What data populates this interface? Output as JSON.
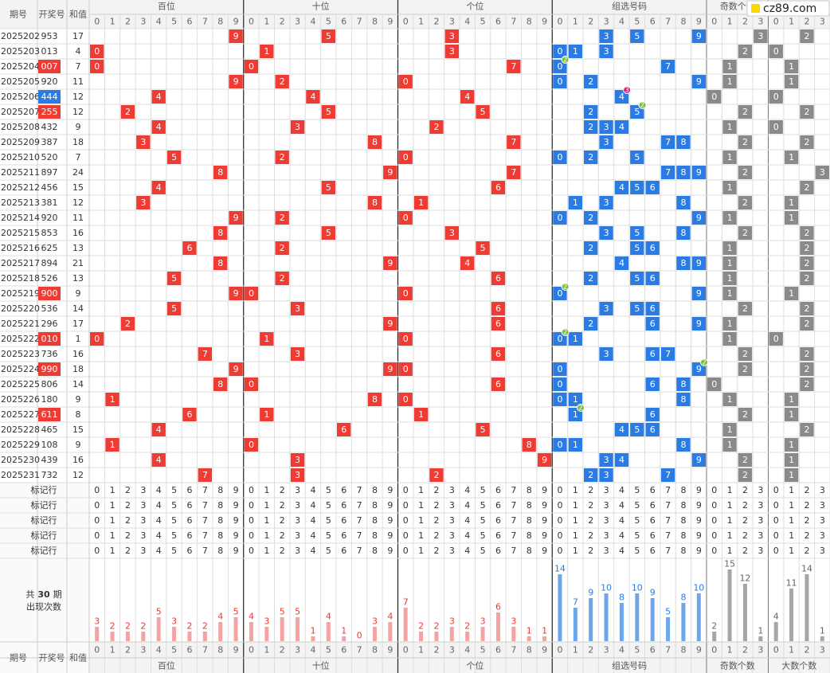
{
  "logo": "cz89.com",
  "headers": {
    "period": "期号",
    "number": "开奖号",
    "sum": "和值",
    "hundreds": "百位",
    "tens": "十位",
    "units": "个位",
    "combo": "组选号码",
    "odd": "奇数个数",
    "big": "大数个数"
  },
  "digit_labels": [
    0,
    1,
    2,
    3,
    4,
    5,
    6,
    7,
    8,
    9
  ],
  "count_labels": [
    0,
    1,
    2,
    3
  ],
  "rows": [
    {
      "period": "2025202",
      "number": "953",
      "sum": 17,
      "digits": [
        9,
        5,
        3
      ],
      "odd": 3,
      "big": 2
    },
    {
      "period": "2025203",
      "number": "013",
      "sum": 4,
      "digits": [
        0,
        1,
        3
      ],
      "odd": 2,
      "big": 0
    },
    {
      "period": "2025204",
      "number": "007",
      "sum": 7,
      "digits": [
        0,
        0,
        7
      ],
      "odd": 1,
      "big": 1,
      "repeat": 2
    },
    {
      "period": "2025205",
      "number": "920",
      "sum": 11,
      "digits": [
        9,
        2,
        0
      ],
      "odd": 1,
      "big": 1
    },
    {
      "period": "2025206",
      "number": "444",
      "sum": 12,
      "digits": [
        4,
        4,
        4
      ],
      "odd": 0,
      "big": 0,
      "repeat": 3
    },
    {
      "period": "2025207",
      "number": "255",
      "sum": 12,
      "digits": [
        2,
        5,
        5
      ],
      "odd": 2,
      "big": 2,
      "repeat": 2
    },
    {
      "period": "2025208",
      "number": "432",
      "sum": 9,
      "digits": [
        4,
        3,
        2
      ],
      "odd": 1,
      "big": 0
    },
    {
      "period": "2025209",
      "number": "387",
      "sum": 18,
      "digits": [
        3,
        8,
        7
      ],
      "odd": 2,
      "big": 2
    },
    {
      "period": "2025210",
      "number": "520",
      "sum": 7,
      "digits": [
        5,
        2,
        0
      ],
      "odd": 1,
      "big": 1
    },
    {
      "period": "2025211",
      "number": "897",
      "sum": 24,
      "digits": [
        8,
        9,
        7
      ],
      "odd": 2,
      "big": 3
    },
    {
      "period": "2025212",
      "number": "456",
      "sum": 15,
      "digits": [
        4,
        5,
        6
      ],
      "odd": 1,
      "big": 2
    },
    {
      "period": "2025213",
      "number": "381",
      "sum": 12,
      "digits": [
        3,
        8,
        1
      ],
      "odd": 2,
      "big": 1
    },
    {
      "period": "2025214",
      "number": "920",
      "sum": 11,
      "digits": [
        9,
        2,
        0
      ],
      "odd": 1,
      "big": 1
    },
    {
      "period": "2025215",
      "number": "853",
      "sum": 16,
      "digits": [
        8,
        5,
        3
      ],
      "odd": 2,
      "big": 2
    },
    {
      "period": "2025216",
      "number": "625",
      "sum": 13,
      "digits": [
        6,
        2,
        5
      ],
      "odd": 1,
      "big": 2
    },
    {
      "period": "2025217",
      "number": "894",
      "sum": 21,
      "digits": [
        8,
        9,
        4
      ],
      "odd": 1,
      "big": 2
    },
    {
      "period": "2025218",
      "number": "526",
      "sum": 13,
      "digits": [
        5,
        2,
        6
      ],
      "odd": 1,
      "big": 2
    },
    {
      "period": "2025219",
      "number": "900",
      "sum": 9,
      "digits": [
        9,
        0,
        0
      ],
      "odd": 1,
      "big": 1,
      "repeat": 2
    },
    {
      "period": "2025220",
      "number": "536",
      "sum": 14,
      "digits": [
        5,
        3,
        6
      ],
      "odd": 2,
      "big": 2
    },
    {
      "period": "2025221",
      "number": "296",
      "sum": 17,
      "digits": [
        2,
        9,
        6
      ],
      "odd": 1,
      "big": 2
    },
    {
      "period": "2025222",
      "number": "010",
      "sum": 1,
      "digits": [
        0,
        1,
        0
      ],
      "odd": 1,
      "big": 0,
      "repeat": 2
    },
    {
      "period": "2025223",
      "number": "736",
      "sum": 16,
      "digits": [
        7,
        3,
        6
      ],
      "odd": 2,
      "big": 2
    },
    {
      "period": "2025224",
      "number": "990",
      "sum": 18,
      "digits": [
        9,
        9,
        0
      ],
      "odd": 2,
      "big": 2,
      "repeat": 2
    },
    {
      "period": "2025225",
      "number": "806",
      "sum": 14,
      "digits": [
        8,
        0,
        6
      ],
      "odd": 0,
      "big": 2
    },
    {
      "period": "2025226",
      "number": "180",
      "sum": 9,
      "digits": [
        1,
        8,
        0
      ],
      "odd": 1,
      "big": 1
    },
    {
      "period": "2025227",
      "number": "611",
      "sum": 8,
      "digits": [
        6,
        1,
        1
      ],
      "odd": 2,
      "big": 1,
      "repeat": 2
    },
    {
      "period": "2025228",
      "number": "465",
      "sum": 15,
      "digits": [
        4,
        6,
        5
      ],
      "odd": 1,
      "big": 2
    },
    {
      "period": "2025229",
      "number": "108",
      "sum": 9,
      "digits": [
        1,
        0,
        8
      ],
      "odd": 1,
      "big": 1
    },
    {
      "period": "2025230",
      "number": "439",
      "sum": 16,
      "digits": [
        4,
        3,
        9
      ],
      "odd": 2,
      "big": 1
    },
    {
      "period": "2025231",
      "number": "732",
      "sum": 12,
      "digits": [
        7,
        3,
        2
      ],
      "odd": 2,
      "big": 1
    }
  ],
  "mark_rows": [
    "标记行",
    "标记行",
    "标记行",
    "标记行",
    "标记行"
  ],
  "stats_label": {
    "prefix": "共",
    "periods": 30,
    "suffix": "期",
    "caption": "出现次数"
  },
  "stats": {
    "hundreds": [
      3,
      2,
      2,
      2,
      5,
      3,
      2,
      2,
      4,
      5
    ],
    "tens": [
      4,
      3,
      5,
      5,
      1,
      4,
      1,
      0,
      3,
      4
    ],
    "units": [
      7,
      2,
      2,
      3,
      2,
      3,
      6,
      3,
      1,
      1
    ],
    "combo": [
      14,
      7,
      9,
      10,
      8,
      10,
      9,
      5,
      8,
      10
    ],
    "odd": [
      2,
      15,
      12,
      1
    ],
    "big": [
      4,
      11,
      14,
      1
    ]
  },
  "colors": {
    "position": "#ee3b33",
    "combo": "#2b7be4",
    "count": "#8a8a8a",
    "pair": "#ee3b33",
    "triple": "#2b7be4",
    "badge": "#7cc043",
    "badge_triple": "#e0218a",
    "bar_position": "#f4a3a3",
    "bar_combo": "#6ea6ec",
    "bar_count": "#a6a6a6",
    "label_position": "#e33b33",
    "label_combo": "#2b7be4",
    "label_count": "#666666"
  }
}
